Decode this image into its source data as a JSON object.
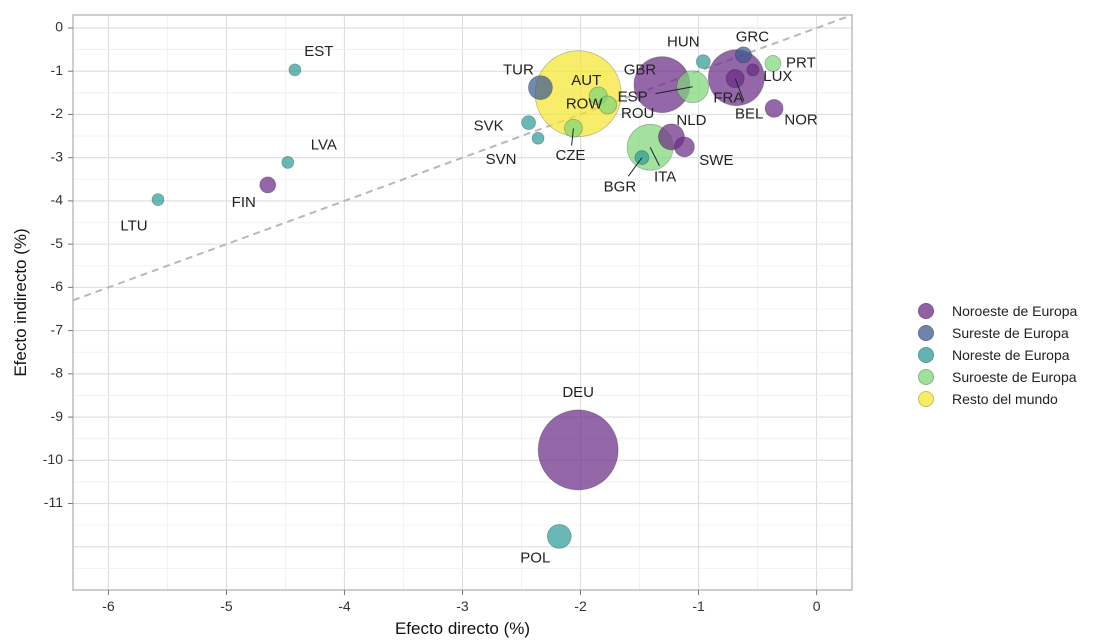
{
  "chart_data": {
    "type": "scatter",
    "xlabel": "Efecto directo (%)",
    "ylabel": "Efecto indirecto (%)",
    "xlim": [
      -6.3,
      0.3
    ],
    "ylim": [
      -13.0,
      0.3
    ],
    "x_ticks": [
      -6,
      -5,
      -4,
      -3,
      -2,
      -1,
      0
    ],
    "y_ticks": [
      0,
      -1,
      -2,
      -3,
      -4,
      -5,
      -6,
      -7,
      -8,
      -9,
      -10,
      -11
    ],
    "grid": true,
    "reference_line": {
      "style": "dashed",
      "slope": 1.0,
      "intercept": 0.0
    },
    "legend": {
      "position": "right",
      "entries": [
        {
          "name": "Noroeste de Europa",
          "color": "#6b2d86"
        },
        {
          "name": "Sureste de Europa",
          "color": "#3d5a92"
        },
        {
          "name": "Noreste de Europa",
          "color": "#2f9c98"
        },
        {
          "name": "Suroeste de Europa",
          "color": "#7fd67a"
        },
        {
          "name": "Resto del mundo",
          "color": "#f5e630"
        }
      ]
    },
    "points": [
      {
        "label": "DEU",
        "x": -2.02,
        "y": -9.76,
        "group": 0,
        "size": 40
      },
      {
        "label": "POL",
        "x": -2.18,
        "y": -11.76,
        "group": 2,
        "size": 12
      },
      {
        "label": "LTU",
        "x": -5.58,
        "y": -3.97,
        "group": 2,
        "size": 6
      },
      {
        "label": "FIN",
        "x": -4.65,
        "y": -3.63,
        "group": 0,
        "size": 8
      },
      {
        "label": "LVA",
        "x": -4.48,
        "y": -3.11,
        "group": 2,
        "size": 6
      },
      {
        "label": "EST",
        "x": -4.42,
        "y": -0.97,
        "group": 2,
        "size": 6
      },
      {
        "label": "SVK",
        "x": -2.44,
        "y": -2.19,
        "group": 2,
        "size": 7
      },
      {
        "label": "SVN",
        "x": -2.36,
        "y": -2.55,
        "group": 2,
        "size": 6
      },
      {
        "label": "TUR",
        "x": -2.34,
        "y": -1.38,
        "group": 1,
        "size": 12
      },
      {
        "label": "ROW",
        "x": -2.02,
        "y": -1.52,
        "group": 4,
        "size": 43
      },
      {
        "label": "CZE",
        "x": -2.06,
        "y": -2.32,
        "group": 3,
        "size": 9
      },
      {
        "label": "AUT",
        "x": -1.85,
        "y": -1.57,
        "group": 3,
        "size": 9
      },
      {
        "label": "ROU",
        "x": -1.77,
        "y": -1.78,
        "group": 3,
        "size": 9
      },
      {
        "label": "GBR",
        "x": -1.31,
        "y": -1.31,
        "group": 0,
        "size": 28
      },
      {
        "label": "ESP",
        "x": -1.05,
        "y": -1.36,
        "group": 3,
        "size": 16
      },
      {
        "label": "ITA",
        "x": -1.41,
        "y": -2.76,
        "group": 3,
        "size": 23
      },
      {
        "label": "BGR",
        "x": -1.48,
        "y": -3.0,
        "group": 2,
        "size": 7
      },
      {
        "label": "NLD",
        "x": -1.23,
        "y": -2.52,
        "group": 0,
        "size": 13
      },
      {
        "label": "SWE",
        "x": -1.12,
        "y": -2.75,
        "group": 0,
        "size": 10
      },
      {
        "label": "HUN",
        "x": -0.96,
        "y": -0.78,
        "group": 2,
        "size": 7
      },
      {
        "label": "GRC",
        "x": -0.62,
        "y": -0.62,
        "group": 1,
        "size": 8
      },
      {
        "label": "PRT",
        "x": -0.37,
        "y": -0.82,
        "group": 3,
        "size": 8
      },
      {
        "label": "FRA",
        "x": -0.68,
        "y": -1.15,
        "group": 0,
        "size": 28
      },
      {
        "label": "BEL",
        "x": -0.69,
        "y": -1.17,
        "group": 0,
        "size": 9
      },
      {
        "label": "LUX",
        "x": -0.54,
        "y": -0.97,
        "group": 0,
        "size": 6
      },
      {
        "label": "NOR",
        "x": -0.36,
        "y": -1.86,
        "group": 0,
        "size": 9
      }
    ]
  }
}
